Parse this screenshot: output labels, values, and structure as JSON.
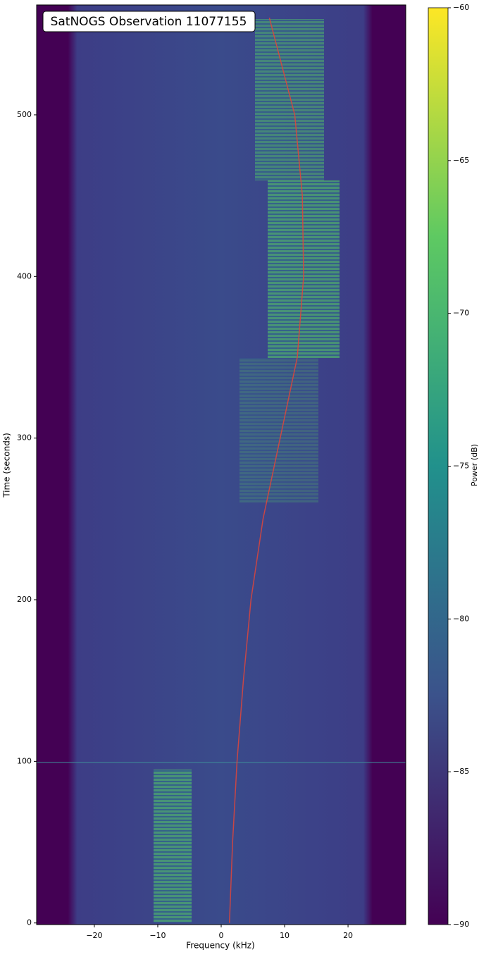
{
  "chart_data": {
    "type": "spectrogram",
    "title": "SatNOGS Observation 11077155",
    "x_label": "Frequency (kHz)",
    "y_label": "Time (seconds)",
    "xlim": [
      -29.1,
      29.1
    ],
    "ylim": [
      -1,
      568
    ],
    "xticks": [
      {
        "value": -20,
        "label": "−20"
      },
      {
        "value": -10,
        "label": "−10"
      },
      0,
      10,
      20
    ],
    "yticks": [
      0,
      100,
      200,
      300,
      400,
      500
    ],
    "series": [
      {
        "color": "#e0453a",
        "x": [
          1.3,
          1.8,
          2.5,
          3.5,
          4.7,
          6.6,
          9.3,
          12.0,
          13.0,
          12.8,
          11.6,
          7.6
        ],
        "y": [
          0,
          50,
          100,
          150,
          200,
          250,
          300,
          350,
          400,
          450,
          500,
          560
        ]
      }
    ],
    "colorbar": {
      "label": "Power (dB)",
      "clim": [
        -90,
        -60
      ],
      "ticks": [
        {
          "value": -90,
          "label": "−90"
        },
        {
          "value": -85,
          "label": "−85"
        },
        {
          "value": -80,
          "label": "−80"
        },
        {
          "value": -75,
          "label": "−75"
        },
        {
          "value": -70,
          "label": "−70"
        },
        {
          "value": -65,
          "label": "−65"
        },
        {
          "value": -60,
          "label": "−60"
        }
      ],
      "colormap": [
        "#440154",
        "#3b528b",
        "#21918c",
        "#5ec962",
        "#fde725"
      ]
    }
  }
}
